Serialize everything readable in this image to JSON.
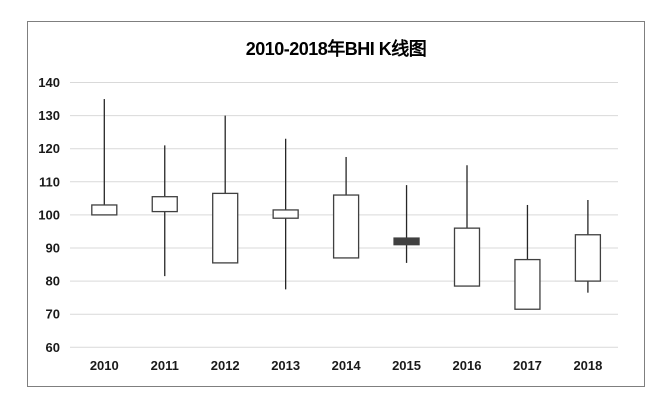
{
  "chart_data": {
    "type": "candlestick",
    "title": "2010-2018年BHI K线图",
    "xlabel": "",
    "ylabel": "",
    "ylim": [
      60,
      140
    ],
    "ytick_interval": 10,
    "yticks": [
      140,
      130,
      120,
      110,
      100,
      90,
      80,
      70,
      60
    ],
    "grid": true,
    "legend": "none",
    "categories": [
      "2010",
      "2011",
      "2012",
      "2013",
      "2014",
      "2015",
      "2016",
      "2017",
      "2018"
    ],
    "candles": [
      {
        "year": "2010",
        "open": 100,
        "close": 103,
        "high": 135,
        "low": 100,
        "direction": "up"
      },
      {
        "year": "2011",
        "open": 101,
        "close": 105.5,
        "high": 121,
        "low": 81.5,
        "direction": "up"
      },
      {
        "year": "2012",
        "open": 85.5,
        "close": 106.5,
        "high": 130,
        "low": 85.5,
        "direction": "up"
      },
      {
        "year": "2013",
        "open": 99,
        "close": 101.5,
        "high": 123,
        "low": 77.5,
        "direction": "up"
      },
      {
        "year": "2014",
        "open": 87,
        "close": 106,
        "high": 117.5,
        "low": 87,
        "direction": "up"
      },
      {
        "year": "2015",
        "open": 93,
        "close": 91,
        "high": 109,
        "low": 85.5,
        "direction": "down"
      },
      {
        "year": "2016",
        "open": 78.5,
        "close": 96,
        "high": 115,
        "low": 78.5,
        "direction": "up"
      },
      {
        "year": "2017",
        "open": 71.5,
        "close": 86.5,
        "high": 103,
        "low": 71.5,
        "direction": "up"
      },
      {
        "year": "2018",
        "open": 80,
        "close": 94,
        "high": 104.5,
        "low": 76.5,
        "direction": "up"
      }
    ],
    "colors": {
      "up_fill": "#ffffff",
      "down_fill": "#404040",
      "body_outline": "#404040",
      "wick": "#262626",
      "gridline": "#d9d9d9",
      "frame_border": "#7f7f7f",
      "title_color": "#000000",
      "label_color": "#1a1a1a"
    }
  }
}
